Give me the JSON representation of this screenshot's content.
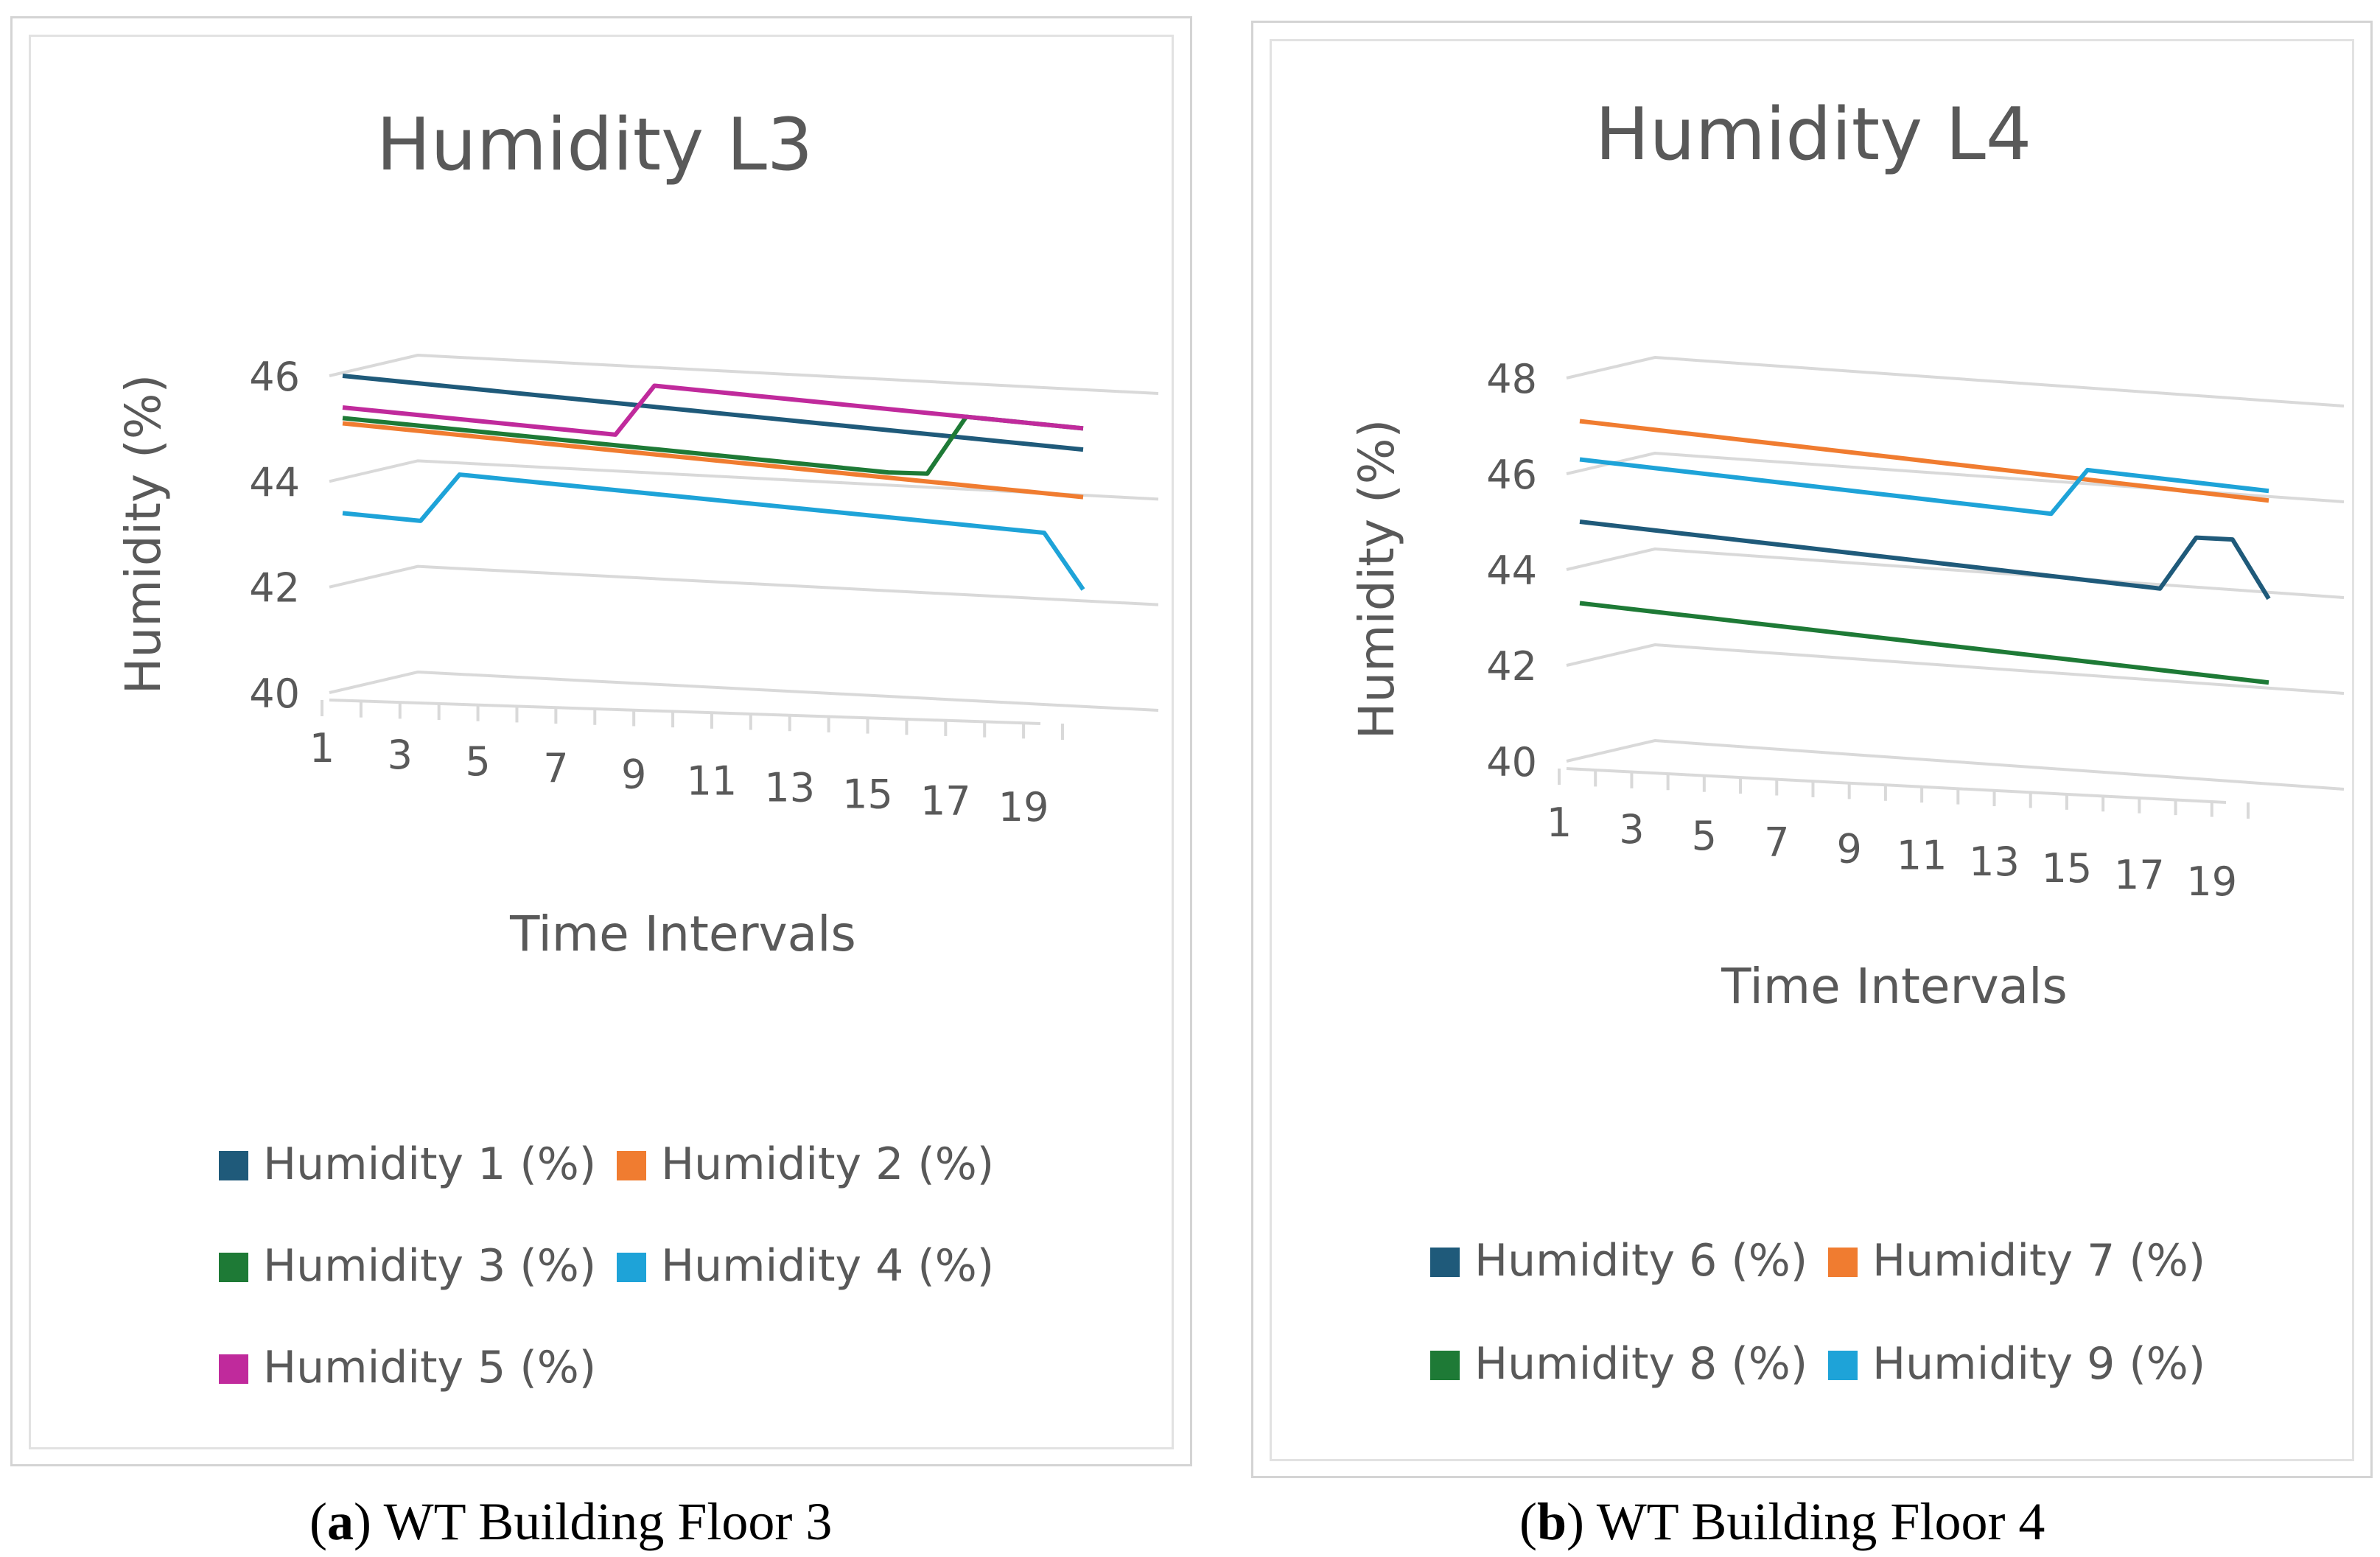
{
  "captions": [
    {
      "letter": "a",
      "open": "(",
      "close": ") ",
      "text": "WT Building Floor 3"
    },
    {
      "letter": "b",
      "open": "(",
      "close": ") ",
      "text": "WT Building Floor 4"
    }
  ],
  "chart_data": [
    {
      "type": "line",
      "style": "3d",
      "title": "Humidity L3",
      "xlabel": "Time Intervals",
      "ylabel": "Humidity (%)",
      "ylim": [
        40,
        46
      ],
      "yticks": [
        40,
        42,
        44,
        46
      ],
      "x": [
        1,
        2,
        3,
        4,
        5,
        6,
        7,
        8,
        9,
        10,
        11,
        12,
        13,
        14,
        15,
        16,
        17,
        18,
        19,
        20
      ],
      "xtick_labels": [
        "1",
        "3",
        "5",
        "7",
        "9",
        "11",
        "13",
        "15",
        "17",
        "19"
      ],
      "series": [
        {
          "name": "Humidity 1 (%)",
          "color": "#1f5a7a",
          "values": [
            46,
            45.95,
            45.9,
            45.85,
            45.8,
            45.75,
            45.7,
            45.65,
            45.6,
            45.55,
            45.5,
            45.45,
            45.4,
            45.35,
            45.3,
            45.25,
            45.2,
            45.15,
            45.1,
            45.05
          ]
        },
        {
          "name": "Humidity 2 (%)",
          "color": "#f07c30",
          "values": [
            45.1,
            45.05,
            45,
            44.95,
            44.9,
            44.85,
            44.8,
            44.75,
            44.7,
            44.65,
            44.6,
            44.55,
            44.5,
            44.45,
            44.4,
            44.35,
            44.3,
            44.25,
            44.2,
            44.15
          ]
        },
        {
          "name": "Humidity 3 (%)",
          "color": "#1e7a36",
          "values": [
            45.2,
            45.15,
            45.1,
            45.05,
            45,
            44.95,
            44.9,
            44.85,
            44.8,
            44.75,
            44.7,
            44.65,
            44.6,
            44.55,
            44.5,
            44.5,
            45.6,
            45.55,
            45.5,
            45.45
          ]
        },
        {
          "name": "Humidity 4 (%)",
          "color": "#1ea3d8",
          "values": [
            43.4,
            43.35,
            43.3,
            44.2,
            44.15,
            44.1,
            44.05,
            44,
            43.95,
            43.9,
            43.85,
            43.8,
            43.75,
            43.7,
            43.65,
            43.6,
            43.55,
            43.5,
            43.45,
            42.4
          ]
        },
        {
          "name": "Humidity 5 (%)",
          "color": "#c02a9c",
          "values": [
            45.4,
            45.35,
            45.3,
            45.25,
            45.2,
            45.15,
            45.1,
            45.05,
            46,
            45.95,
            45.9,
            45.85,
            45.8,
            45.75,
            45.7,
            45.65,
            45.6,
            45.55,
            45.5,
            45.45
          ]
        }
      ]
    },
    {
      "type": "line",
      "style": "3d",
      "title": "Humidity L4",
      "xlabel": "Time Intervals",
      "ylabel": "Humidity (%)",
      "ylim": [
        40,
        48
      ],
      "yticks": [
        40,
        42,
        44,
        46,
        48
      ],
      "x": [
        1,
        2,
        3,
        4,
        5,
        6,
        7,
        8,
        9,
        10,
        11,
        12,
        13,
        14,
        15,
        16,
        17,
        18,
        19,
        20
      ],
      "xtick_labels": [
        "1",
        "3",
        "5",
        "7",
        "9",
        "11",
        "13",
        "15",
        "17",
        "19"
      ],
      "series": [
        {
          "name": "Humidity 6 (%)",
          "color": "#1f5a7a",
          "values": [
            45,
            44.95,
            44.9,
            44.85,
            44.8,
            44.75,
            44.7,
            44.65,
            44.6,
            44.55,
            44.5,
            44.45,
            44.4,
            44.35,
            44.3,
            44.25,
            44.2,
            45.3,
            45.3,
            44.1
          ]
        },
        {
          "name": "Humidity 7 (%)",
          "color": "#f07c30",
          "values": [
            47.1,
            47.05,
            47,
            46.95,
            46.9,
            46.85,
            46.8,
            46.75,
            46.7,
            46.65,
            46.6,
            46.55,
            46.5,
            46.45,
            46.4,
            46.35,
            46.3,
            46.25,
            46.2,
            46.15
          ]
        },
        {
          "name": "Humidity 8 (%)",
          "color": "#1e7a36",
          "values": [
            43.3,
            43.25,
            43.2,
            43.15,
            43.1,
            43.05,
            43,
            42.95,
            42.9,
            42.85,
            42.8,
            42.75,
            42.7,
            42.65,
            42.6,
            42.55,
            42.5,
            42.45,
            42.4,
            42.35
          ]
        },
        {
          "name": "Humidity 9 (%)",
          "color": "#1ea3d8",
          "values": [
            46.3,
            46.25,
            46.2,
            46.15,
            46.1,
            46.05,
            46,
            45.95,
            45.9,
            45.85,
            45.8,
            45.75,
            45.7,
            45.65,
            46.6,
            46.55,
            46.5,
            46.45,
            46.4,
            46.35
          ]
        }
      ]
    }
  ]
}
